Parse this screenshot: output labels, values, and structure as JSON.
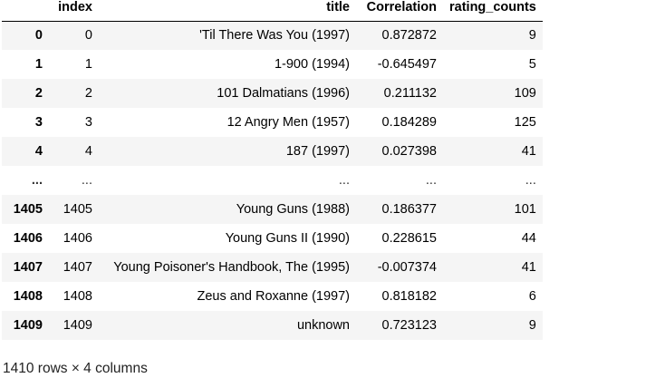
{
  "table": {
    "columns": [
      "",
      "index",
      "title",
      "Correlation",
      "rating_counts"
    ],
    "rows": [
      {
        "row_label": "0",
        "index": "0",
        "title": "'Til There Was You (1997)",
        "correlation": "0.872872",
        "rating_counts": "9"
      },
      {
        "row_label": "1",
        "index": "1",
        "title": "1-900 (1994)",
        "correlation": "-0.645497",
        "rating_counts": "5"
      },
      {
        "row_label": "2",
        "index": "2",
        "title": "101 Dalmatians (1996)",
        "correlation": "0.211132",
        "rating_counts": "109"
      },
      {
        "row_label": "3",
        "index": "3",
        "title": "12 Angry Men (1957)",
        "correlation": "0.184289",
        "rating_counts": "125"
      },
      {
        "row_label": "4",
        "index": "4",
        "title": "187 (1997)",
        "correlation": "0.027398",
        "rating_counts": "41"
      },
      {
        "row_label": "...",
        "index": "...",
        "title": "...",
        "correlation": "...",
        "rating_counts": "..."
      },
      {
        "row_label": "1405",
        "index": "1405",
        "title": "Young Guns (1988)",
        "correlation": "0.186377",
        "rating_counts": "101"
      },
      {
        "row_label": "1406",
        "index": "1406",
        "title": "Young Guns II (1990)",
        "correlation": "0.228615",
        "rating_counts": "44"
      },
      {
        "row_label": "1407",
        "index": "1407",
        "title": "Young Poisoner's Handbook, The (1995)",
        "correlation": "-0.007374",
        "rating_counts": "41"
      },
      {
        "row_label": "1408",
        "index": "1408",
        "title": "Zeus and Roxanne (1997)",
        "correlation": "0.818182",
        "rating_counts": "6"
      },
      {
        "row_label": "1409",
        "index": "1409",
        "title": "unknown",
        "correlation": "0.723123",
        "rating_counts": "9"
      }
    ]
  },
  "shape_caption": "1410 rows × 4 columns",
  "colors": {
    "stripe": "#f5f5f5",
    "background": "#ffffff",
    "header_rule": "#000000"
  }
}
